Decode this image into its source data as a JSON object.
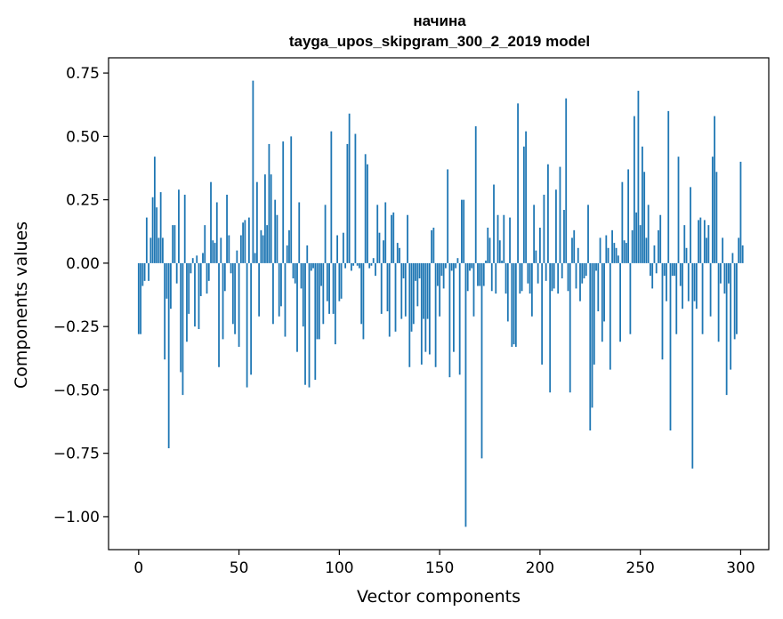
{
  "chart_data": {
    "type": "bar",
    "title_line1": "начина",
    "title_line2": "tayga_upos_skipgram_300_2_2019 model",
    "xlabel": "Vector components",
    "ylabel": "Components values",
    "xlim": [
      -15,
      314
    ],
    "ylim": [
      -1.13,
      0.81
    ],
    "xticks": [
      0,
      50,
      100,
      150,
      200,
      250,
      300
    ],
    "xtick_labels": [
      "0",
      "50",
      "100",
      "150",
      "200",
      "250",
      "300"
    ],
    "yticks": [
      0.75,
      0.5,
      0.25,
      0.0,
      -0.25,
      -0.5,
      -0.75,
      -1.0
    ],
    "ytick_labels": [
      "0.75",
      "0.50",
      "0.25",
      "0.00",
      "−0.25",
      "−0.50",
      "−0.75",
      "−1.00"
    ],
    "bar_color": "#1f77b4",
    "values": [
      -0.28,
      -0.28,
      -0.09,
      -0.07,
      0.18,
      -0.07,
      0.1,
      0.26,
      0.42,
      0.22,
      0.1,
      0.28,
      0.1,
      -0.38,
      -0.14,
      -0.73,
      -0.18,
      0.15,
      0.15,
      -0.08,
      0.29,
      -0.43,
      -0.52,
      0.27,
      -0.31,
      -0.2,
      -0.04,
      0.02,
      -0.25,
      0.03,
      -0.26,
      -0.13,
      0.04,
      0.15,
      -0.12,
      -0.07,
      0.32,
      0.09,
      0.08,
      0.24,
      -0.41,
      0.1,
      -0.3,
      -0.11,
      0.27,
      0.11,
      -0.04,
      -0.24,
      -0.28,
      0.05,
      -0.33,
      0.11,
      0.16,
      0.17,
      -0.49,
      0.18,
      -0.44,
      0.72,
      0.04,
      0.32,
      -0.21,
      0.13,
      0.11,
      0.35,
      0.15,
      0.47,
      0.35,
      -0.24,
      0.25,
      0.19,
      -0.21,
      -0.17,
      0.48,
      -0.29,
      0.07,
      0.13,
      0.5,
      -0.06,
      -0.08,
      -0.35,
      0.24,
      -0.1,
      -0.25,
      -0.48,
      0.07,
      -0.49,
      -0.03,
      -0.02,
      -0.46,
      -0.3,
      -0.3,
      -0.09,
      -0.24,
      0.23,
      -0.15,
      -0.2,
      0.52,
      -0.2,
      -0.32,
      0.11,
      -0.15,
      -0.14,
      0.12,
      -0.02,
      0.47,
      0.59,
      -0.03,
      -0.01,
      0.51,
      -0.01,
      -0.02,
      -0.24,
      -0.3,
      0.43,
      0.39,
      -0.02,
      -0.01,
      0.02,
      -0.05,
      0.23,
      0.12,
      -0.2,
      0.09,
      0.24,
      -0.19,
      -0.29,
      0.19,
      0.2,
      -0.27,
      0.08,
      0.06,
      -0.22,
      -0.06,
      -0.21,
      0.19,
      -0.41,
      -0.27,
      -0.24,
      -0.07,
      -0.17,
      -0.06,
      -0.4,
      -0.22,
      -0.35,
      -0.22,
      -0.36,
      0.13,
      0.14,
      -0.41,
      -0.09,
      -0.21,
      -0.05,
      -0.1,
      -0.02,
      0.37,
      -0.45,
      -0.03,
      -0.35,
      -0.02,
      0.02,
      -0.44,
      0.25,
      0.25,
      -1.04,
      -0.11,
      -0.03,
      -0.02,
      -0.21,
      0.54,
      -0.09,
      -0.09,
      -0.77,
      -0.09,
      0.01,
      0.14,
      0.1,
      -0.11,
      0.31,
      -0.12,
      0.19,
      0.09,
      0.01,
      0.19,
      -0.12,
      -0.23,
      0.18,
      -0.33,
      -0.32,
      -0.33,
      0.63,
      -0.12,
      -0.11,
      0.46,
      0.52,
      -0.08,
      -0.12,
      -0.21,
      0.23,
      0.05,
      -0.08,
      0.14,
      -0.4,
      0.27,
      -0.07,
      0.39,
      -0.51,
      -0.11,
      -0.1,
      0.29,
      -0.12,
      0.38,
      -0.06,
      0.21,
      0.65,
      -0.11,
      -0.51,
      0.1,
      0.13,
      -0.1,
      0.06,
      -0.15,
      -0.08,
      -0.06,
      -0.05,
      0.23,
      -0.66,
      -0.57,
      -0.4,
      -0.03,
      -0.19,
      0.1,
      -0.31,
      -0.23,
      0.11,
      0.06,
      -0.42,
      0.13,
      0.08,
      0.06,
      0.03,
      -0.31,
      0.32,
      0.09,
      0.08,
      0.37,
      -0.28,
      0.13,
      0.58,
      0.2,
      0.68,
      0.15,
      0.46,
      0.36,
      0.1,
      0.23,
      -0.05,
      -0.1,
      0.07,
      -0.04,
      0.13,
      0.19,
      -0.38,
      -0.05,
      -0.15,
      0.6,
      -0.66,
      -0.05,
      -0.05,
      -0.28,
      0.42,
      -0.09,
      -0.18,
      0.15,
      0.06,
      -0.15,
      0.3,
      -0.81,
      -0.15,
      -0.18,
      0.17,
      0.18,
      -0.28,
      0.17,
      0.1,
      0.15,
      -0.21,
      0.42,
      0.58,
      0.36,
      -0.31,
      -0.08,
      0.1,
      -0.12,
      -0.52,
      -0.08,
      -0.42,
      0.04,
      -0.3,
      -0.28,
      0.1,
      0.4,
      0.07
    ]
  }
}
